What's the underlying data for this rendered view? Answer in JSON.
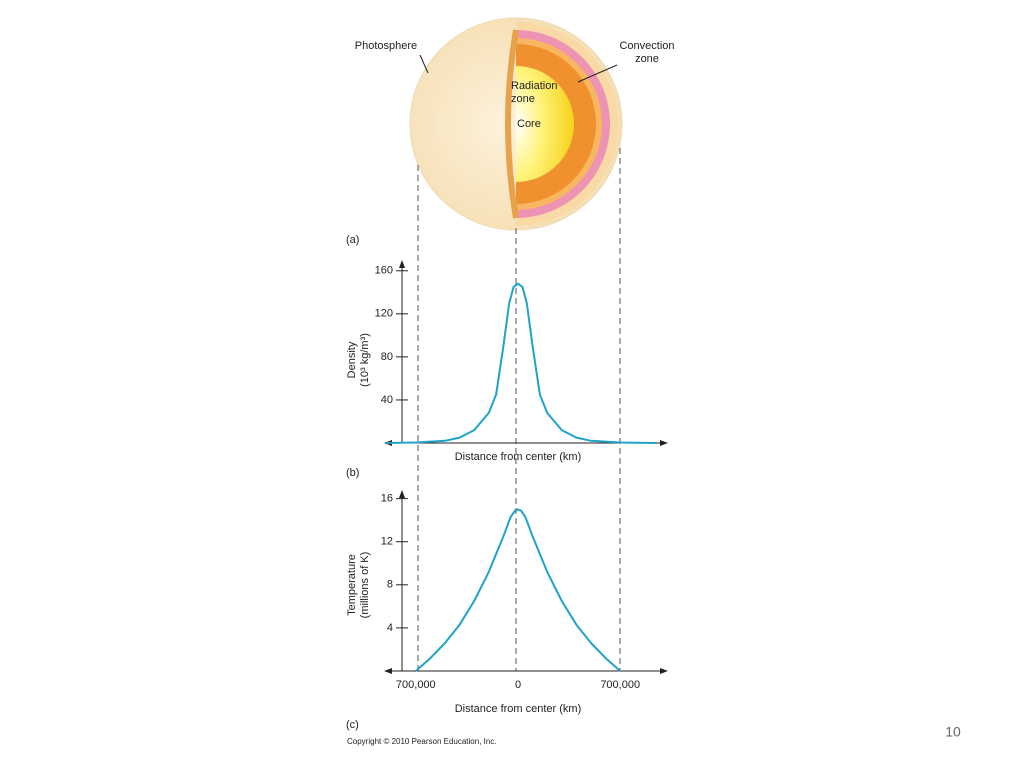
{
  "diagram": {
    "labels": {
      "photosphere": "Photosphere",
      "convection": [
        "Convection",
        "zone"
      ],
      "radiation": [
        "Radiation",
        "zone"
      ],
      "core": "Core"
    }
  },
  "panel_labels": [
    "(a)",
    "(b)",
    "(c)"
  ],
  "copyright": "Copyright © 2010 Pearson Education, Inc.",
  "slide_number": "10",
  "chart_data": [
    {
      "type": "line",
      "ylabel": [
        "Density",
        "(10³ kg/m³)"
      ],
      "xlabel": "Distance from center (km)",
      "x": [
        -900000,
        -700000,
        -500000,
        -400000,
        -300000,
        -200000,
        -150000,
        -100000,
        -60000,
        -30000,
        0,
        30000,
        60000,
        100000,
        150000,
        200000,
        300000,
        400000,
        500000,
        700000,
        950000
      ],
      "values": [
        0,
        0.5,
        2,
        5,
        12,
        28,
        45,
        90,
        130,
        145,
        148,
        145,
        130,
        90,
        45,
        28,
        12,
        5,
        2,
        0.5,
        0
      ],
      "color": "#1fa3c9",
      "xlim": [
        -1000000,
        1000000
      ],
      "ylim": [
        0,
        170
      ],
      "yticks": [
        40,
        80,
        120,
        160
      ]
    },
    {
      "type": "line",
      "ylabel": [
        "Temperature",
        "(millions of K)"
      ],
      "xlabel": "Distance from center (km)",
      "x": [
        -700000,
        -600000,
        -500000,
        -400000,
        -300000,
        -200000,
        -100000,
        -50000,
        -20000,
        0,
        20000,
        50000,
        100000,
        200000,
        300000,
        400000,
        500000,
        600000,
        700000
      ],
      "values": [
        0,
        1.2,
        2.6,
        4.3,
        6.5,
        9.2,
        12.5,
        14.3,
        14.9,
        15,
        14.9,
        14.3,
        12.5,
        9.2,
        6.5,
        4.3,
        2.6,
        1.2,
        0
      ],
      "color": "#1fa3c9",
      "xlim": [
        -1000000,
        1000000
      ],
      "ylim": [
        0,
        16.8
      ],
      "yticks": [
        4,
        8,
        12,
        16
      ],
      "xticks": [
        {
          "value": -700000,
          "label": "700,000"
        },
        0,
        {
          "value": 700000,
          "label": "700,000"
        }
      ]
    }
  ]
}
